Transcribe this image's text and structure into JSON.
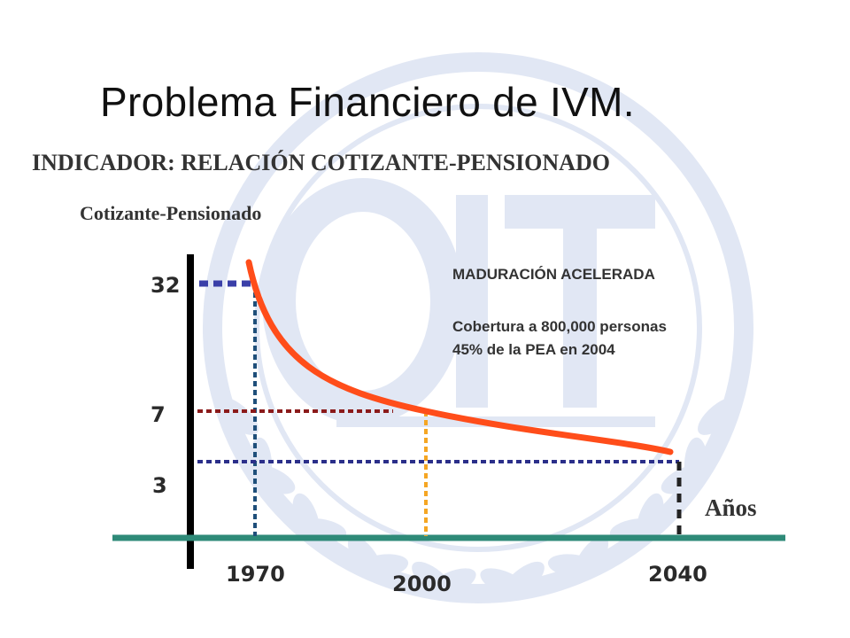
{
  "title": "Problema Financiero de IVM.",
  "subtitle": "INDICADOR: RELACIÓN COTIZANTE-PENSIONADO",
  "colors": {
    "curve": "#ff4d1a",
    "axis": "#000000",
    "baseline": "#2e8a78",
    "watermark": "#e1e7f4"
  },
  "annotations": {
    "heading": "MADURACIÓN ACELERADA",
    "line1": "Cobertura a 800,000 personas",
    "line2": "45% de la PEA en 2004"
  },
  "chart_data": {
    "type": "line",
    "title": "",
    "xlabel": "Años",
    "ylabel": "Cotizante-Pensionado",
    "x_ticks": [
      1970,
      2000,
      2040
    ],
    "y_ticks": [
      32,
      7,
      3
    ],
    "series": [
      {
        "points": [
          {
            "x": 1970,
            "y": 32
          },
          {
            "x": 2000,
            "y": 7
          },
          {
            "x": 2040,
            "y": 3
          }
        ]
      }
    ],
    "guides": [
      {
        "x": 1970,
        "y": 32,
        "color": "#3a3fa8",
        "vcolor": "#1f4f7a"
      },
      {
        "x": 2000,
        "y": 7,
        "color": "#8b1a1a",
        "vcolor": "#f5a623"
      },
      {
        "x": 2040,
        "y": 3,
        "color": "#2b2f8a",
        "vcolor": "#222222"
      }
    ],
    "grid": false,
    "legend": "none"
  }
}
